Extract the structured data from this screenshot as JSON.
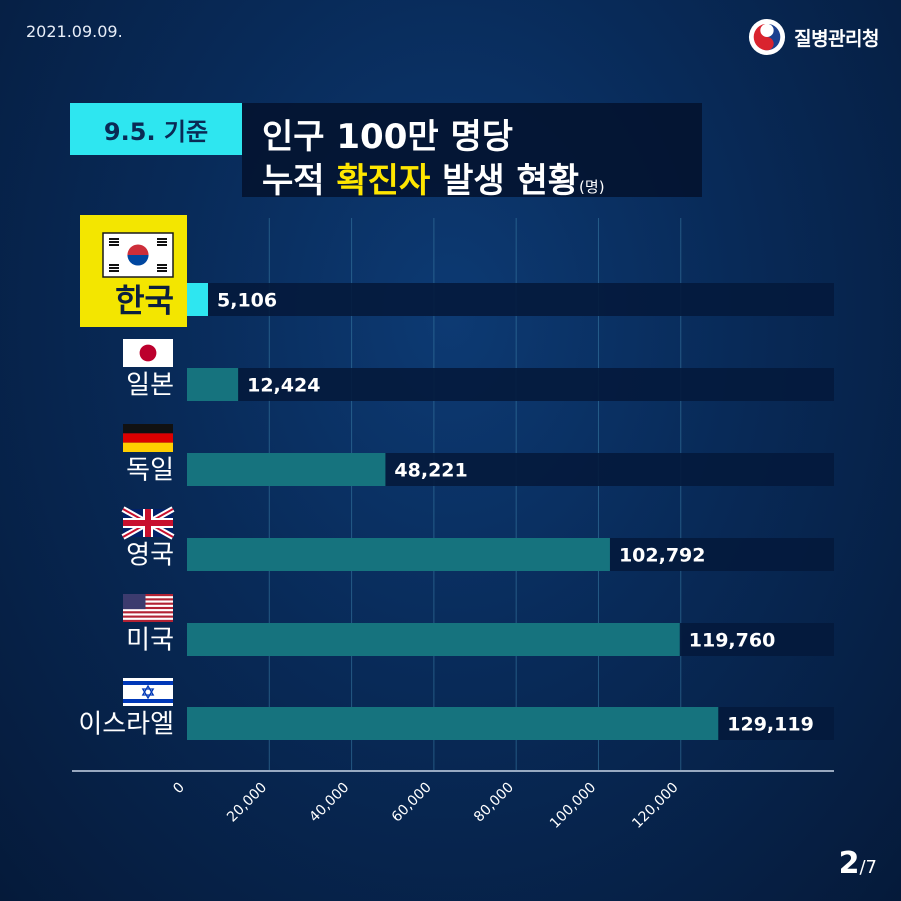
{
  "header": {
    "date": "2021.09.09.",
    "logo_text": "질병관리청"
  },
  "badge": "9.5. 기준",
  "title": {
    "line1": "인구 100만 명당",
    "line2_before": "누적 ",
    "line2_highlight": "확진자",
    "line2_after": " 발생 현황",
    "unit": "(명)"
  },
  "colors": {
    "highlight_bar": "#2ee6f0",
    "bar": "#16737e",
    "track": "#041a3c",
    "highlight_label_bg": "#f3e600",
    "title_highlight": "#ffe600"
  },
  "chart_data": {
    "type": "bar",
    "orientation": "horizontal",
    "categories": [
      "한국",
      "일본",
      "독일",
      "영국",
      "미국",
      "이스라엘"
    ],
    "flags": [
      "korea-flag-icon",
      "japan-flag-icon",
      "germany-flag-icon",
      "uk-flag-icon",
      "usa-flag-icon",
      "israel-flag-icon"
    ],
    "values": [
      5106,
      12424,
      48221,
      102792,
      119760,
      129119
    ],
    "value_labels": [
      "5,106",
      "12,424",
      "48,221",
      "102,792",
      "119,760",
      "129,119"
    ],
    "highlight": "한국",
    "x_ticks": [
      "0",
      "20,000",
      "40,000",
      "60,000",
      "80,000",
      "100,000",
      "120,000"
    ],
    "xlim": [
      0,
      157000
    ],
    "grid": true
  },
  "pager": {
    "current": "2",
    "total": "/7"
  }
}
